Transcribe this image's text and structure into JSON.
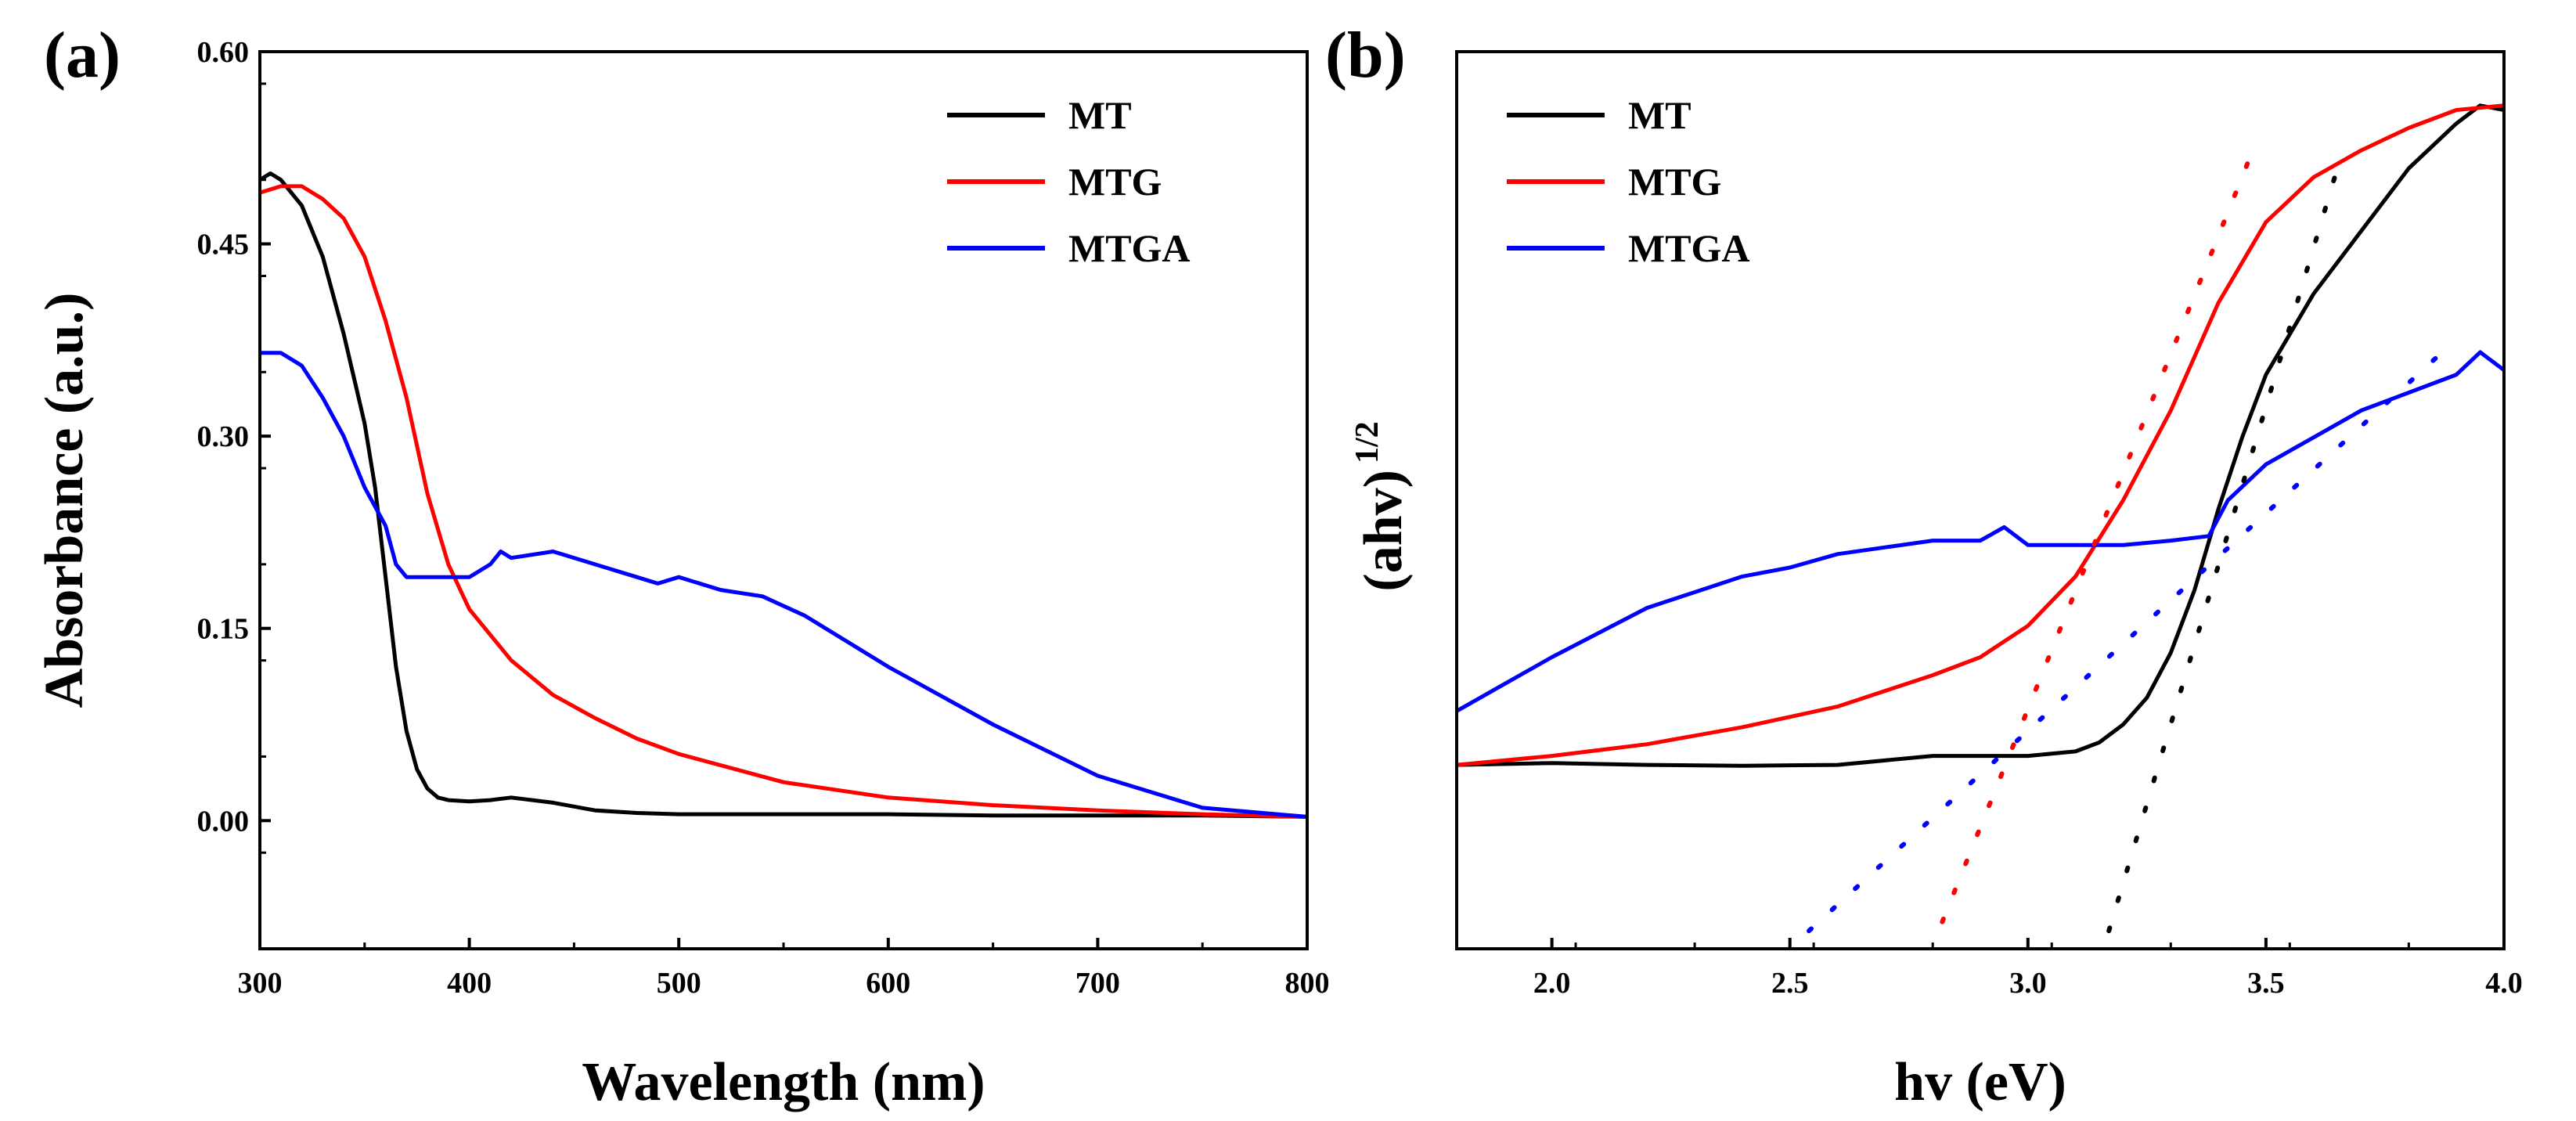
{
  "colors": {
    "MT": "#000000",
    "MTG": "#ff0000",
    "MTGA": "#0000ff"
  },
  "chart_data": [
    {
      "type": "line",
      "panel_label": "(a)",
      "xlabel": "Wavelength (nm)",
      "ylabel": "Absorbance (a.u.)",
      "xlim": [
        300,
        800
      ],
      "ylim": [
        -0.1,
        0.6
      ],
      "xticks": [
        300,
        400,
        500,
        600,
        700,
        800
      ],
      "xtick_labels": [
        "300",
        "400",
        "500",
        "600",
        "700",
        "800"
      ],
      "yticks": [
        0.0,
        0.15,
        0.3,
        0.45,
        0.6
      ],
      "ytick_labels": [
        "0.00",
        "0.15",
        "0.30",
        "0.45",
        "0.60"
      ],
      "legend": [
        "MT",
        "MTG",
        "MTGA"
      ],
      "legend_position": "top-right",
      "series": [
        {
          "name": "MT",
          "x": [
            300,
            305,
            310,
            315,
            320,
            330,
            340,
            345,
            350,
            355,
            360,
            365,
            370,
            375,
            380,
            385,
            390,
            400,
            410,
            420,
            440,
            460,
            480,
            500,
            550,
            600,
            650,
            700,
            750,
            800
          ],
          "y": [
            0.5,
            0.505,
            0.5,
            0.49,
            0.48,
            0.44,
            0.38,
            0.345,
            0.31,
            0.26,
            0.19,
            0.12,
            0.07,
            0.04,
            0.025,
            0.018,
            0.016,
            0.015,
            0.016,
            0.018,
            0.014,
            0.008,
            0.006,
            0.005,
            0.005,
            0.005,
            0.004,
            0.004,
            0.004,
            0.003
          ]
        },
        {
          "name": "MTG",
          "x": [
            300,
            310,
            320,
            330,
            340,
            350,
            360,
            370,
            380,
            390,
            400,
            420,
            440,
            460,
            480,
            500,
            550,
            600,
            650,
            700,
            750,
            800
          ],
          "y": [
            0.49,
            0.495,
            0.495,
            0.485,
            0.47,
            0.44,
            0.39,
            0.33,
            0.255,
            0.2,
            0.165,
            0.125,
            0.098,
            0.08,
            0.064,
            0.052,
            0.03,
            0.018,
            0.012,
            0.008,
            0.005,
            0.003
          ]
        },
        {
          "name": "MTGA",
          "x": [
            300,
            310,
            320,
            330,
            340,
            350,
            360,
            365,
            370,
            380,
            390,
            400,
            410,
            415,
            420,
            440,
            460,
            480,
            490,
            500,
            520,
            540,
            560,
            600,
            650,
            700,
            750,
            800
          ],
          "y": [
            0.365,
            0.365,
            0.355,
            0.33,
            0.3,
            0.26,
            0.23,
            0.2,
            0.19,
            0.19,
            0.19,
            0.19,
            0.2,
            0.21,
            0.205,
            0.21,
            0.2,
            0.19,
            0.185,
            0.19,
            0.18,
            0.175,
            0.16,
            0.12,
            0.075,
            0.035,
            0.01,
            0.003
          ]
        }
      ]
    },
    {
      "type": "line",
      "panel_label": "(b)",
      "xlabel": "hv (eV)",
      "ylabel": "(ahv)",
      "ylabel_superscript": "1/2",
      "xlim": [
        1.8,
        4.0
      ],
      "ylim": [
        0,
        1
      ],
      "xticks": [
        2.0,
        2.5,
        3.0,
        3.5,
        4.0
      ],
      "xtick_labels": [
        "2.0",
        "2.5",
        "3.0",
        "3.5",
        "4.0"
      ],
      "legend": [
        "MT",
        "MTG",
        "MTGA"
      ],
      "legend_position": "top-left",
      "series": [
        {
          "name": "MT",
          "x": [
            1.8,
            2.0,
            2.2,
            2.4,
            2.6,
            2.8,
            3.0,
            3.1,
            3.15,
            3.2,
            3.25,
            3.3,
            3.35,
            3.4,
            3.45,
            3.5,
            3.6,
            3.7,
            3.8,
            3.9,
            3.95,
            4.0
          ],
          "y": [
            0.205,
            0.207,
            0.205,
            0.204,
            0.205,
            0.215,
            0.215,
            0.22,
            0.23,
            0.25,
            0.28,
            0.33,
            0.4,
            0.49,
            0.57,
            0.64,
            0.73,
            0.8,
            0.87,
            0.92,
            0.94,
            0.935
          ]
        },
        {
          "name": "MTG",
          "x": [
            1.8,
            2.0,
            2.2,
            2.4,
            2.6,
            2.8,
            2.9,
            3.0,
            3.1,
            3.2,
            3.3,
            3.4,
            3.5,
            3.6,
            3.7,
            3.8,
            3.9,
            4.0
          ],
          "y": [
            0.205,
            0.215,
            0.228,
            0.247,
            0.27,
            0.305,
            0.325,
            0.36,
            0.415,
            0.5,
            0.6,
            0.72,
            0.81,
            0.86,
            0.89,
            0.915,
            0.935,
            0.94
          ]
        },
        {
          "name": "MTGA",
          "x": [
            1.8,
            2.0,
            2.2,
            2.4,
            2.5,
            2.6,
            2.8,
            2.9,
            2.95,
            3.0,
            3.1,
            3.2,
            3.3,
            3.38,
            3.42,
            3.5,
            3.6,
            3.7,
            3.8,
            3.9,
            3.95,
            4.0
          ],
          "y": [
            0.265,
            0.325,
            0.38,
            0.415,
            0.425,
            0.44,
            0.455,
            0.455,
            0.47,
            0.45,
            0.45,
            0.45,
            0.455,
            0.46,
            0.5,
            0.54,
            0.57,
            0.6,
            0.62,
            0.64,
            0.665,
            0.645
          ]
        }
      ],
      "tangent_lines": [
        {
          "name": "MT",
          "x": [
            3.17,
            3.65
          ],
          "y": [
            0.02,
            0.87
          ]
        },
        {
          "name": "MTG",
          "x": [
            2.82,
            3.48
          ],
          "y": [
            0.03,
            0.9
          ]
        },
        {
          "name": "MTGA",
          "x": [
            2.54,
            3.86
          ],
          "y": [
            0.02,
            0.66
          ]
        }
      ]
    }
  ]
}
